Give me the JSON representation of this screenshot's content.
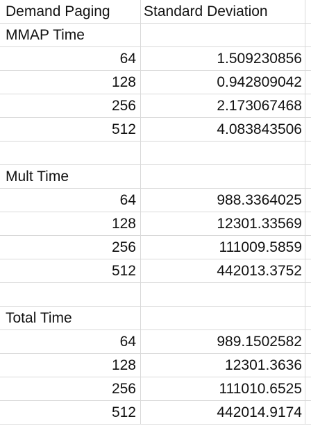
{
  "headers": {
    "col_a": "Demand Paging",
    "col_b": "Standard Deviation"
  },
  "sections": [
    {
      "title": "MMAP Time",
      "rows": [
        {
          "size": "64",
          "value": "1.509230856"
        },
        {
          "size": "128",
          "value": "0.942809042"
        },
        {
          "size": "256",
          "value": "2.173067468"
        },
        {
          "size": "512",
          "value": "4.083843506"
        }
      ]
    },
    {
      "title": "Mult Time",
      "rows": [
        {
          "size": "64",
          "value": "988.3364025"
        },
        {
          "size": "128",
          "value": "12301.33569"
        },
        {
          "size": "256",
          "value": "111009.5859"
        },
        {
          "size": "512",
          "value": "442013.3752"
        }
      ]
    },
    {
      "title": "Total Time",
      "rows": [
        {
          "size": "64",
          "value": "989.1502582"
        },
        {
          "size": "128",
          "value": "12301.3636"
        },
        {
          "size": "256",
          "value": "111010.6525"
        },
        {
          "size": "512",
          "value": "442014.9174"
        }
      ]
    }
  ]
}
